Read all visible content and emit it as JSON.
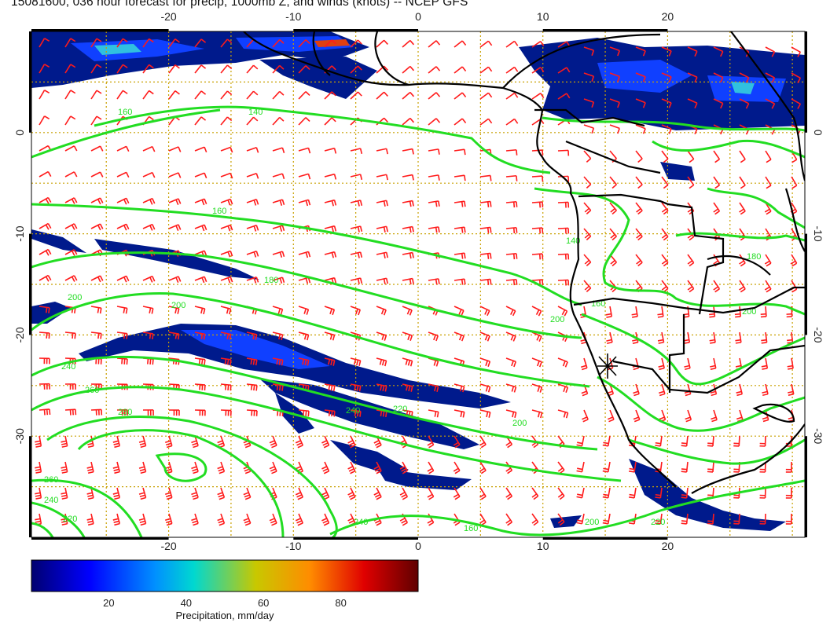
{
  "title": "15081600, 036 hour forecast for precip, 1000mb Z, and winds (knots) -- NCEP GFS",
  "map": {
    "lon_range": [
      -31,
      31
    ],
    "lat_range": [
      -40,
      10
    ],
    "lon_ticks": [
      "-20",
      "-10",
      "0",
      "10",
      "20"
    ],
    "lat_ticks": [
      "0",
      "-10",
      "-20",
      "-30"
    ],
    "contour_labels": [
      "160",
      "140",
      "160",
      "180",
      "200",
      "200",
      "240",
      "260",
      "280",
      "260",
      "240",
      "220",
      "240",
      "240",
      "220",
      "200",
      "160",
      "140",
      "160",
      "180",
      "200",
      "200",
      "200",
      "220"
    ],
    "colors": {
      "coast": "#000000",
      "contour": "#22dd22",
      "barb": "#ff1a1a",
      "grid": "#c8a000"
    }
  },
  "colorbar": {
    "ticks": [
      "20",
      "40",
      "60",
      "80"
    ],
    "range": [
      0,
      100
    ],
    "label": "Precipitation, mm/day",
    "colors": [
      "#000080",
      "#0000ff",
      "#00a0ff",
      "#00e0d0",
      "#c8c800",
      "#ff8000",
      "#e00000",
      "#700000"
    ]
  }
}
